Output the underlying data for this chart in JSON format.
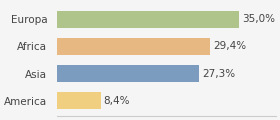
{
  "categories": [
    "Europa",
    "Africa",
    "Asia",
    "America"
  ],
  "values": [
    35.0,
    29.4,
    27.3,
    8.4
  ],
  "labels": [
    "35,0%",
    "29,4%",
    "27,3%",
    "8,4%"
  ],
  "bar_colors": [
    "#afc48a",
    "#e8b882",
    "#7b9cbf",
    "#f0d080"
  ],
  "background_color": "#f5f5f5",
  "xlim": [
    0,
    42
  ],
  "label_fontsize": 7.5,
  "cat_fontsize": 7.5
}
